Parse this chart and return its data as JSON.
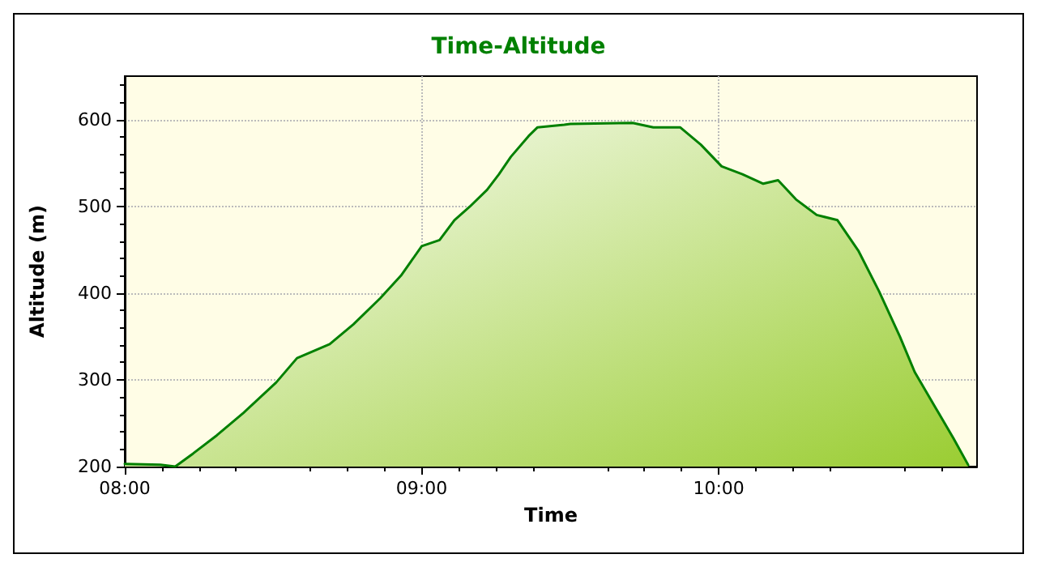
{
  "chart_data": {
    "type": "area",
    "title": "Time-Altitude",
    "xlabel": "Time",
    "ylabel": "Altitude (m)",
    "x": [
      8.0,
      8.12,
      8.17,
      8.23,
      8.31,
      8.4,
      8.51,
      8.58,
      8.69,
      8.77,
      8.86,
      8.93,
      9.0,
      9.06,
      9.11,
      9.16,
      9.22,
      9.26,
      9.3,
      9.36,
      9.39,
      9.48,
      9.5,
      9.71,
      9.78,
      9.87,
      9.94,
      10.01,
      10.08,
      10.15,
      10.2,
      10.26,
      10.33,
      10.4,
      10.47,
      10.54,
      10.61,
      10.66,
      10.73,
      10.79,
      10.84
    ],
    "series": [
      {
        "color": "#008000",
        "values": [
          203,
          202,
          200,
          215,
          236,
          262,
          297,
          325,
          341,
          364,
          394,
          420,
          454,
          461,
          484,
          499,
          519,
          537,
          557,
          581,
          591,
          594,
          595,
          596,
          591,
          591,
          571,
          546,
          537,
          526,
          530,
          508,
          490,
          484,
          449,
          402,
          350,
          309,
          268,
          233,
          202
        ]
      }
    ],
    "xlim": [
      8.0,
      10.87
    ],
    "xticks": [
      {
        "value": 8,
        "label": "08:00"
      },
      {
        "value": 9,
        "label": "09:00"
      },
      {
        "value": 10,
        "label": "10:00"
      }
    ],
    "ylim": [
      200,
      650
    ],
    "yticks": [
      200,
      300,
      400,
      500,
      600
    ],
    "grid": true,
    "marker": "none",
    "line_style": "solid"
  }
}
